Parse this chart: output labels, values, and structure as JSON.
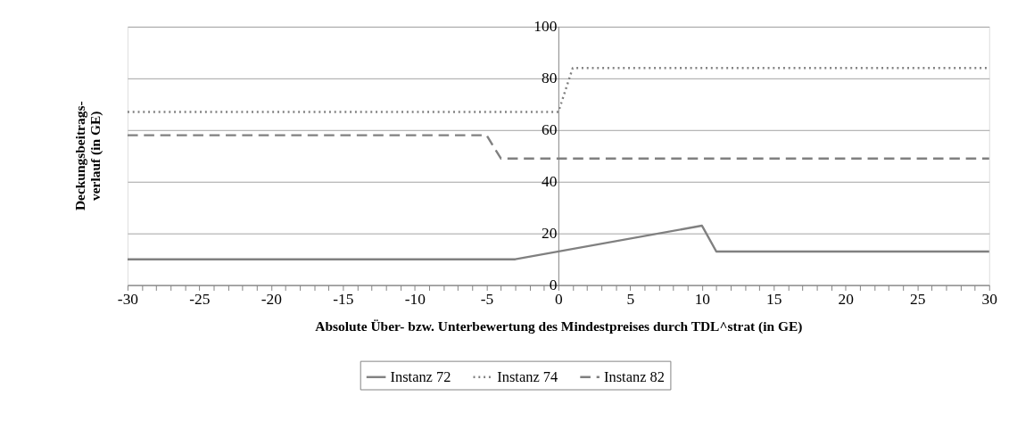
{
  "chart_data": {
    "type": "line",
    "xlabel": "Absolute Über- bzw. Unterbewertung des Mindestpreises durch TDL^strat (in GE)",
    "ylabel": "Deckungsbeitrags-\nverlauf (in GE)",
    "xlim": [
      -30,
      30
    ],
    "ylim": [
      0,
      100
    ],
    "xticks": [
      -30,
      {
        "value": -29,
        "label": null
      },
      {
        "value": -28,
        "label": null
      },
      {
        "value": -27,
        "label": null
      },
      {
        "value": -26,
        "label": null
      },
      -25,
      {
        "value": -24,
        "label": null
      },
      {
        "value": -23,
        "label": null
      },
      {
        "value": -22,
        "label": null
      },
      {
        "value": -21,
        "label": null
      },
      -20,
      {
        "value": -19,
        "label": null
      },
      {
        "value": -18,
        "label": null
      },
      {
        "value": -17,
        "label": null
      },
      {
        "value": -16,
        "label": null
      },
      -15,
      {
        "value": -14,
        "label": null
      },
      {
        "value": -13,
        "label": null
      },
      {
        "value": -12,
        "label": null
      },
      {
        "value": -11,
        "label": null
      },
      -10,
      {
        "value": -9,
        "label": null
      },
      {
        "value": -8,
        "label": null
      },
      {
        "value": -7,
        "label": null
      },
      {
        "value": -6,
        "label": null
      },
      -5,
      {
        "value": -4,
        "label": null
      },
      {
        "value": -3,
        "label": null
      },
      {
        "value": -2,
        "label": null
      },
      {
        "value": -1,
        "label": null
      },
      0,
      {
        "value": 1,
        "label": null
      },
      {
        "value": 2,
        "label": null
      },
      {
        "value": 3,
        "label": null
      },
      {
        "value": 4,
        "label": null
      },
      5,
      {
        "value": 6,
        "label": null
      },
      {
        "value": 7,
        "label": null
      },
      {
        "value": 8,
        "label": null
      },
      {
        "value": 9,
        "label": null
      },
      10,
      {
        "value": 11,
        "label": null
      },
      {
        "value": 12,
        "label": null
      },
      {
        "value": 13,
        "label": null
      },
      {
        "value": 14,
        "label": null
      },
      15,
      {
        "value": 16,
        "label": null
      },
      {
        "value": 17,
        "label": null
      },
      {
        "value": 18,
        "label": null
      },
      {
        "value": 19,
        "label": null
      },
      20,
      {
        "value": 21,
        "label": null
      },
      {
        "value": 22,
        "label": null
      },
      {
        "value": 23,
        "label": null
      },
      {
        "value": 24,
        "label": null
      },
      25,
      {
        "value": 26,
        "label": null
      },
      {
        "value": 27,
        "label": null
      },
      {
        "value": 28,
        "label": null
      },
      {
        "value": 29,
        "label": null
      },
      30
    ],
    "yticks": [
      0,
      20,
      40,
      60,
      80,
      100
    ],
    "grid": "y",
    "legend": "bottom",
    "marker": "none",
    "series": [
      {
        "name": "Instanz 72",
        "color": "#808080",
        "line_style": "solid",
        "x": [
          -30,
          -3,
          10,
          11,
          30
        ],
        "values": [
          10,
          10,
          23,
          13,
          13
        ]
      },
      {
        "name": "Instanz 74",
        "color": "#808080",
        "line_style": "dotted",
        "x": [
          -30,
          0,
          1,
          30
        ],
        "values": [
          67,
          67,
          84,
          84
        ]
      },
      {
        "name": "Instanz 82",
        "color": "#808080",
        "line_style": "dashed",
        "x": [
          -30,
          -5,
          -4,
          30
        ],
        "values": [
          58,
          58,
          49,
          49
        ]
      }
    ]
  }
}
